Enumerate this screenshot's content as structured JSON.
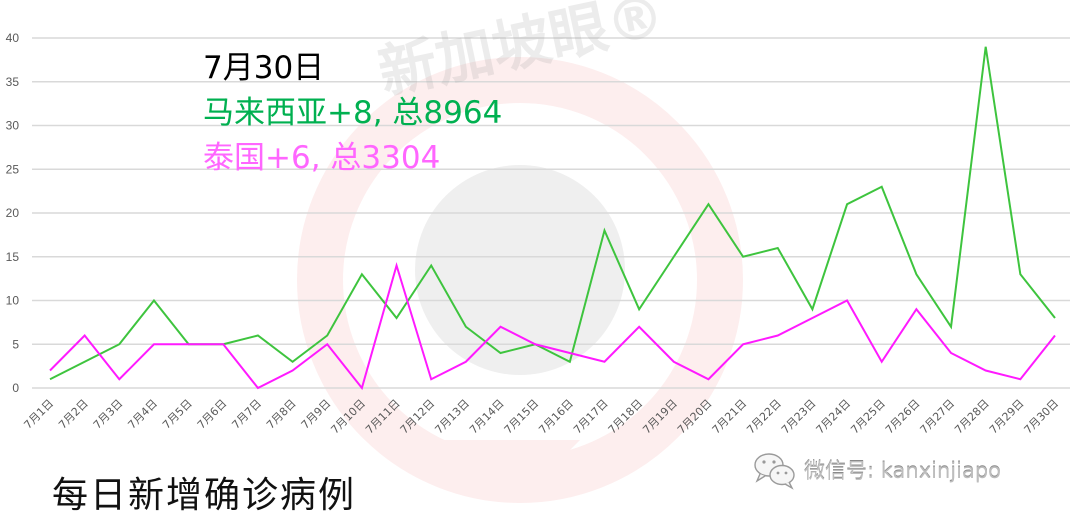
{
  "chart_data": {
    "type": "line",
    "title": "每日新增确诊病例",
    "xlabel": "",
    "ylabel": "",
    "ylim": [
      0,
      40
    ],
    "yticks": [
      0,
      5,
      10,
      15,
      20,
      25,
      30,
      35,
      40
    ],
    "grid": true,
    "legend_position": "none",
    "categories": [
      "7月1日",
      "7月2日",
      "7月3日",
      "7月4日",
      "7月5日",
      "7月6日",
      "7月7日",
      "7月8日",
      "7月9日",
      "7月10日",
      "7月11日",
      "7月12日",
      "7月13日",
      "7月14日",
      "7月15日",
      "7月16日",
      "7月17日",
      "7月18日",
      "7月19日",
      "7月20日",
      "7月21日",
      "7月22日",
      "7月23日",
      "7月24日",
      "7月25日",
      "7月26日",
      "7月27日",
      "7月28日",
      "7月29日",
      "7月30日"
    ],
    "series": [
      {
        "name": "马来西亚",
        "color": "#3ec43e",
        "values": [
          1,
          3,
          5,
          10,
          5,
          5,
          6,
          3,
          6,
          13,
          8,
          14,
          7,
          4,
          5,
          3,
          18,
          9,
          15,
          21,
          15,
          16,
          9,
          21,
          23,
          13,
          7,
          39,
          13,
          8
        ]
      },
      {
        "name": "泰国",
        "color": "#ff1aff",
        "values": [
          2,
          6,
          1,
          5,
          5,
          5,
          0,
          2,
          5,
          0,
          14,
          1,
          3,
          7,
          5,
          4,
          3,
          7,
          3,
          1,
          5,
          6,
          8,
          10,
          3,
          9,
          4,
          2,
          1,
          6
        ]
      }
    ],
    "annotations": [
      {
        "text": "7月30日",
        "color": "#000000"
      },
      {
        "text": "马来西亚+8, 总8964",
        "color": "#00b050"
      },
      {
        "text": "泰国+6, 总3304",
        "color": "#ff66ff"
      }
    ]
  },
  "annotations": {
    "date": "7月30日",
    "malaysia": "马来西亚+8, 总8964",
    "thailand": "泰国+6, 总3304"
  },
  "bottom_title": "每日新增确诊病例",
  "watermark": {
    "text": "新加坡眼®"
  },
  "wechat": {
    "icon": "wechat-icon",
    "label": "微信号: kanxinjiapo"
  }
}
